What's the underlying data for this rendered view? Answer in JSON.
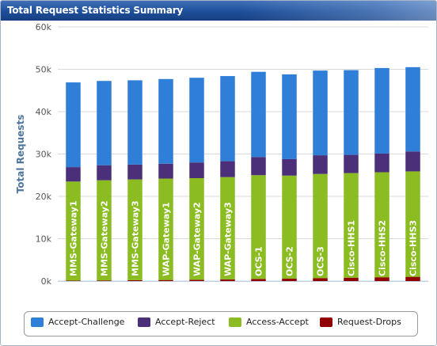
{
  "panel": {
    "title": "Total Request Statistics Summary"
  },
  "colors": {
    "accept_challenge": "#2f7ed8",
    "accept_reject": "#4b2f78",
    "access_accept": "#8bbc21",
    "request_drops": "#910000",
    "title_bar": "#1d4e9a",
    "axis_title": "#4d759e"
  },
  "legend": {
    "items": [
      {
        "label": "Accept-Challenge",
        "color": "#2f7ed8"
      },
      {
        "label": "Accept-Reject",
        "color": "#4b2f78"
      },
      {
        "label": "Access-Accept",
        "color": "#8bbc21"
      },
      {
        "label": "Request-Drops",
        "color": "#910000"
      }
    ]
  },
  "chart_data": {
    "type": "bar",
    "stacked": true,
    "ylabel": "Total Requests",
    "ylim": [
      0,
      60000
    ],
    "yticks": [
      "0k",
      "10k",
      "20k",
      "30k",
      "40k",
      "50k",
      "60k"
    ],
    "grid": true,
    "legend_position": "bottom",
    "categories": [
      "MMS-Gateway1",
      "MMS-Gateway2",
      "MMS-Gateway3",
      "WAP-Gateway1",
      "WAP-Gateway2",
      "WAP-Gateway3",
      "OCS-1",
      "OCS-2",
      "OCS-3",
      "Cisco-HHS1",
      "Cisco-HHS2",
      "Cisco-HHS3"
    ],
    "series": [
      {
        "name": "Request-Drops",
        "color": "#910000",
        "values": [
          100,
          150,
          200,
          250,
          300,
          400,
          500,
          600,
          700,
          800,
          900,
          1000
        ]
      },
      {
        "name": "Access-Accept",
        "color": "#8bbc21",
        "values": [
          23400,
          23650,
          23800,
          23950,
          24000,
          24150,
          24500,
          24300,
          24600,
          24700,
          24800,
          24900
        ]
      },
      {
        "name": "Accept-Reject",
        "color": "#4b2f78",
        "values": [
          3400,
          3550,
          3500,
          3500,
          3700,
          3750,
          4300,
          3900,
          4400,
          4300,
          4400,
          4700
        ]
      },
      {
        "name": "Accept-Challenge",
        "color": "#2f7ed8",
        "values": [
          20000,
          19900,
          19900,
          20000,
          20000,
          20100,
          20100,
          20000,
          20000,
          20000,
          20200,
          19900
        ]
      }
    ]
  }
}
